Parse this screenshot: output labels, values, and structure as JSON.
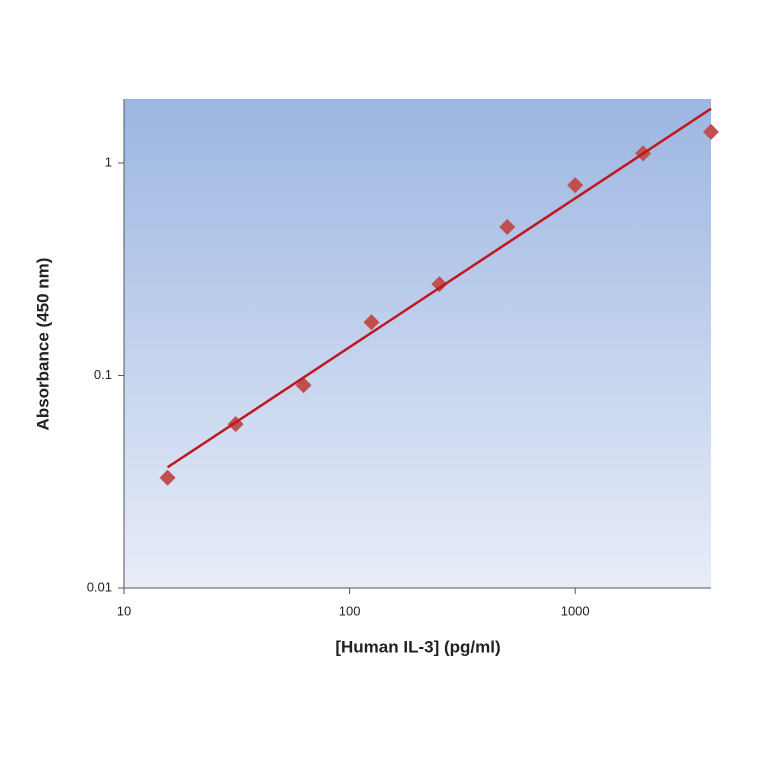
{
  "chart_data": {
    "type": "scatter",
    "x_label": "[Human IL-3] (pg/ml)",
    "y_label": "Absorbance (450 nm)",
    "xscale": "log",
    "yscale": "log",
    "xlim": [
      10,
      4000
    ],
    "ylim": [
      0.01,
      2
    ],
    "xticks": [
      10,
      100,
      1000
    ],
    "yticks": [
      0.01,
      0.1,
      1
    ],
    "series": [
      {
        "kind": "points",
        "color": "#c0504d",
        "x": [
          15.6,
          31.25,
          62.5,
          125,
          250,
          500,
          1000,
          2000,
          4000
        ],
        "values": [
          0.033,
          0.059,
          0.09,
          0.178,
          0.269,
          0.5,
          0.787,
          1.11,
          1.4
        ]
      },
      {
        "kind": "fit",
        "color": "#c0171e",
        "x": [
          15.6,
          4000
        ],
        "values": [
          0.037,
          1.8
        ]
      }
    ]
  }
}
